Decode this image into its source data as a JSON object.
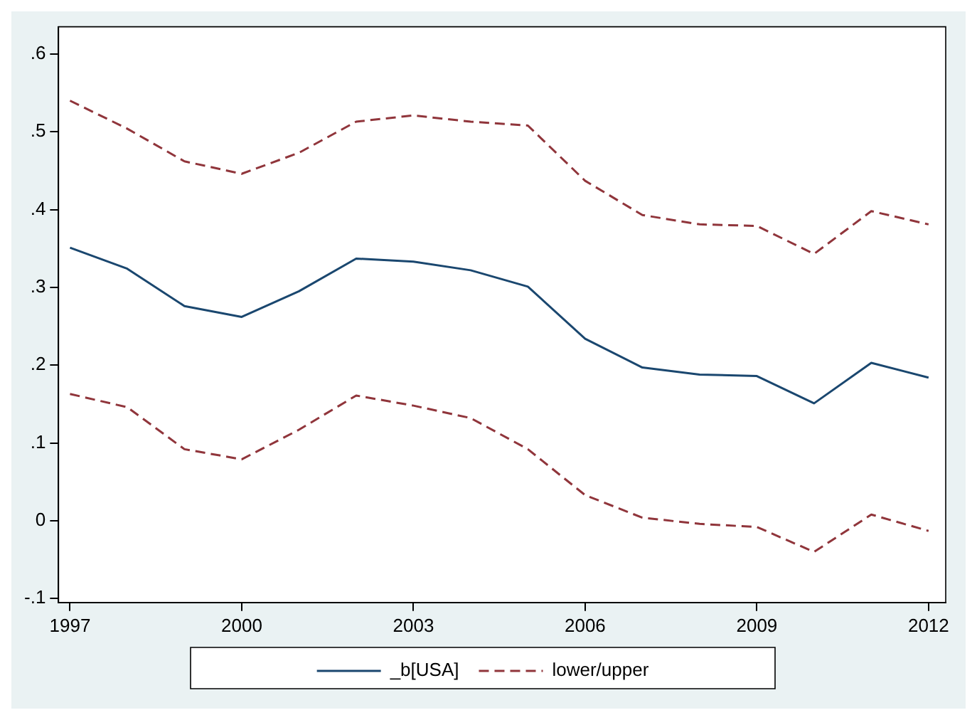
{
  "chart_data": {
    "type": "line",
    "x": [
      1997,
      1998,
      1999,
      2000,
      2001,
      2002,
      2003,
      2004,
      2005,
      2006,
      2007,
      2008,
      2009,
      2010,
      2011,
      2012
    ],
    "series": [
      {
        "name": "_b[USA]",
        "color": "#1a476f",
        "line_style": "solid",
        "values": [
          0.351,
          0.324,
          0.276,
          0.262,
          0.295,
          0.337,
          0.333,
          0.322,
          0.301,
          0.234,
          0.197,
          0.188,
          0.186,
          0.151,
          0.203,
          0.184
        ]
      },
      {
        "name": "lower/upper",
        "color": "#90353b",
        "line_style": "dashed",
        "values": [
          0.54,
          0.504,
          0.462,
          0.446,
          0.473,
          0.513,
          0.521,
          0.513,
          0.508,
          0.437,
          0.393,
          0.381,
          0.379,
          0.343,
          0.398,
          0.381
        ]
      },
      {
        "color": "#90353b",
        "line_style": "dashed",
        "values": [
          0.163,
          0.146,
          0.092,
          0.079,
          0.117,
          0.161,
          0.148,
          0.132,
          0.092,
          0.033,
          0.004,
          -0.004,
          -0.008,
          -0.04,
          0.008,
          -0.013
        ]
      }
    ],
    "xlim": [
      1996.8,
      2012.3
    ],
    "xticks": [
      1997,
      2000,
      2003,
      2006,
      2009,
      2012
    ],
    "ylim": [
      -0.105,
      0.635
    ],
    "yticks": [
      {
        "value": -0.1,
        "label": "-.1"
      },
      0,
      {
        "value": 0.1,
        "label": ".1"
      },
      {
        "value": 0.2,
        "label": ".2"
      },
      {
        "value": 0.3,
        "label": ".3"
      },
      {
        "value": 0.4,
        "label": ".4"
      },
      {
        "value": 0.5,
        "label": ".5"
      },
      {
        "value": 0.6,
        "label": ".6"
      }
    ],
    "grid": false,
    "legend": "bottom",
    "marker": "none"
  }
}
